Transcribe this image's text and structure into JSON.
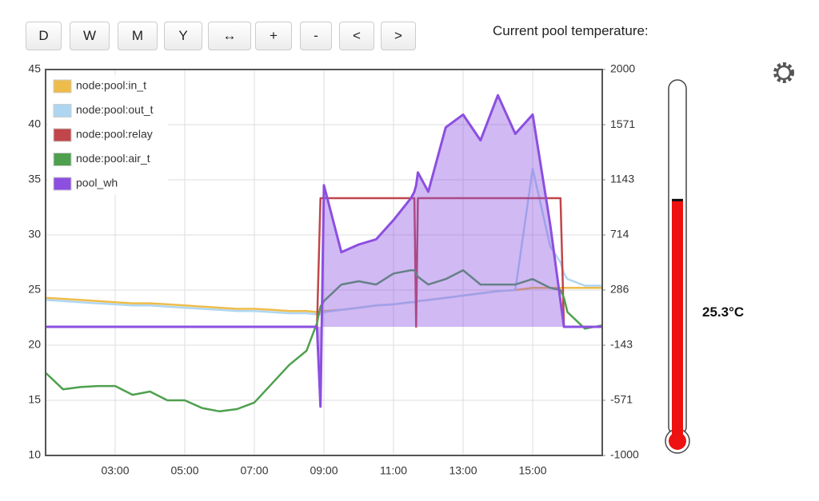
{
  "toolbar": {
    "buttons": [
      "D",
      "W",
      "M",
      "Y",
      "↔",
      "+",
      "-",
      "<",
      ">"
    ]
  },
  "chart_data": {
    "type": "line",
    "x": [
      1,
      1.5,
      2,
      2.5,
      3,
      3.5,
      4,
      4.5,
      5,
      5.5,
      6,
      6.5,
      7,
      7.5,
      8,
      8.5,
      8.8,
      8.9,
      9,
      9.5,
      10,
      10.5,
      11,
      11.5,
      11.6,
      11.65,
      11.7,
      12,
      12.5,
      13,
      13.5,
      14,
      14.5,
      15,
      15.5,
      15.8,
      15.9,
      16,
      16.5,
      17
    ],
    "series": [
      {
        "name": "node:pool:in_t",
        "color": "#eebc4a",
        "values": [
          24.3,
          24.2,
          24.1,
          24.0,
          23.9,
          23.8,
          23.8,
          23.7,
          23.6,
          23.5,
          23.4,
          23.3,
          23.3,
          23.2,
          23.1,
          23.1,
          23.0,
          23.0,
          23.1,
          23.2,
          23.4,
          23.6,
          23.7,
          23.9,
          23.9,
          23.9,
          24.0,
          24.1,
          24.3,
          24.5,
          24.7,
          24.9,
          25.0,
          25.2,
          25.2,
          25.2,
          25.2,
          25.2,
          25.2,
          25.2
        ]
      },
      {
        "name": "node:pool:out_t",
        "color": "#aed6f1",
        "values": [
          24.1,
          24.0,
          23.9,
          23.8,
          23.7,
          23.6,
          23.6,
          23.5,
          23.4,
          23.3,
          23.2,
          23.1,
          23.1,
          23.0,
          22.9,
          22.9,
          22.8,
          22.8,
          23.0,
          23.2,
          23.4,
          23.6,
          23.7,
          23.9,
          23.9,
          23.9,
          24.0,
          24.1,
          24.3,
          24.5,
          24.7,
          24.9,
          25.0,
          36,
          29,
          27.5,
          26.5,
          26,
          25.4,
          25.4
        ]
      },
      {
        "name": "node:pool:relay",
        "color": "#c0464a",
        "axis": "y2",
        "values": [
          0,
          0,
          0,
          0,
          0,
          0,
          0,
          0,
          0,
          0,
          0,
          0,
          0,
          0,
          0,
          0,
          0,
          1000,
          1000,
          1000,
          1000,
          1000,
          1000,
          1000,
          1000,
          0,
          1000,
          1000,
          1000,
          1000,
          1000,
          1000,
          1000,
          1000,
          1000,
          1000,
          0,
          0,
          0,
          0
        ]
      },
      {
        "name": "node:pool:air_t",
        "color": "#4ea04e",
        "values": [
          17.5,
          16,
          16.2,
          16.3,
          16.3,
          15.5,
          15.8,
          15.0,
          15.0,
          14.3,
          14.0,
          14.2,
          14.8,
          16.5,
          18.2,
          19.5,
          22,
          23.5,
          24,
          25.5,
          25.8,
          25.5,
          26.5,
          26.8,
          26.8,
          26.5,
          26.2,
          25.5,
          26,
          26.8,
          25.5,
          25.5,
          25.5,
          26,
          25.2,
          25,
          24.3,
          23,
          21.5,
          21.8
        ]
      },
      {
        "name": "pool_wh",
        "color": "#8c4fe0",
        "axis": "y2",
        "area": true,
        "values": [
          0,
          0,
          0,
          0,
          0,
          0,
          0,
          0,
          0,
          0,
          0,
          0,
          0,
          0,
          0,
          0,
          0,
          -620,
          1100,
          580,
          640,
          680,
          830,
          1000,
          1050,
          1100,
          1200,
          1050,
          1550,
          1650,
          1450,
          1800,
          1500,
          1650,
          800,
          200,
          0,
          0,
          0,
          0
        ]
      }
    ],
    "xlim": [
      1,
      17
    ],
    "xticks": [
      {
        "value": 3,
        "label": "03:00"
      },
      {
        "value": 5,
        "label": "05:00"
      },
      {
        "value": 7,
        "label": "07:00"
      },
      {
        "value": 9,
        "label": "09:00"
      },
      {
        "value": 11,
        "label": "11:00"
      },
      {
        "value": 13,
        "label": "13:00"
      },
      {
        "value": 15,
        "label": "15:00"
      }
    ],
    "ylim": [
      10,
      45
    ],
    "yticks": [
      10,
      15,
      20,
      25,
      30,
      35,
      40,
      45
    ],
    "y2lim": [
      -1000,
      2000
    ],
    "y2ticks": [
      -1000,
      -571,
      -143,
      286,
      714,
      1143,
      1571,
      2000
    ],
    "grid": true,
    "legend": "top-left"
  },
  "thermometer": {
    "label": "Current pool temperature:",
    "value": 25.3,
    "value_label": "25.3°C",
    "lim": [
      0,
      38
    ],
    "color": "#ee1111"
  }
}
